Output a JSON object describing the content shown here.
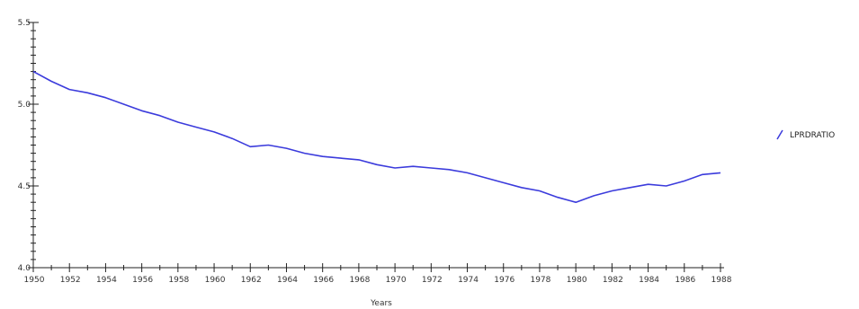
{
  "chart_data": {
    "type": "line",
    "title": "",
    "xlabel": "Years",
    "ylabel": "",
    "xlim": [
      1950,
      1988
    ],
    "ylim": [
      4.0,
      5.5
    ],
    "x_ticks": [
      1950,
      1952,
      1954,
      1956,
      1958,
      1960,
      1962,
      1964,
      1966,
      1968,
      1970,
      1972,
      1974,
      1976,
      1978,
      1980,
      1982,
      1984,
      1986,
      1988
    ],
    "x_tick_labels": [
      "1950",
      "1952",
      "1954",
      "1956",
      "1958",
      "1960",
      "1962",
      "1964",
      "1966",
      "1968",
      "1970",
      "1972",
      "1974",
      "1976",
      "1978",
      "1980",
      "1982",
      "1984",
      "1986",
      "1988"
    ],
    "y_ticks": [
      4.0,
      4.5,
      5.0,
      5.5
    ],
    "y_tick_labels": [
      "4.0",
      "4.5",
      "5.0",
      "5.5"
    ],
    "grid": false,
    "legend_position": "right",
    "series": [
      {
        "name": "LPRDRATIO",
        "color": "#3b3bdc",
        "x": [
          1950,
          1951,
          1952,
          1953,
          1954,
          1955,
          1956,
          1957,
          1958,
          1959,
          1960,
          1961,
          1962,
          1963,
          1964,
          1965,
          1966,
          1967,
          1968,
          1969,
          1970,
          1971,
          1972,
          1973,
          1974,
          1975,
          1976,
          1977,
          1978,
          1979,
          1980,
          1981,
          1982,
          1983,
          1984,
          1985,
          1986,
          1987,
          1988
        ],
        "values": [
          5.2,
          5.14,
          5.09,
          5.07,
          5.04,
          5.0,
          4.96,
          4.93,
          4.89,
          4.86,
          4.83,
          4.79,
          4.74,
          4.75,
          4.73,
          4.7,
          4.68,
          4.67,
          4.66,
          4.63,
          4.61,
          4.62,
          4.61,
          4.6,
          4.58,
          4.55,
          4.52,
          4.49,
          4.47,
          4.43,
          4.4,
          4.44,
          4.47,
          4.49,
          4.51,
          4.5,
          4.53,
          4.57,
          4.58
        ]
      }
    ]
  }
}
